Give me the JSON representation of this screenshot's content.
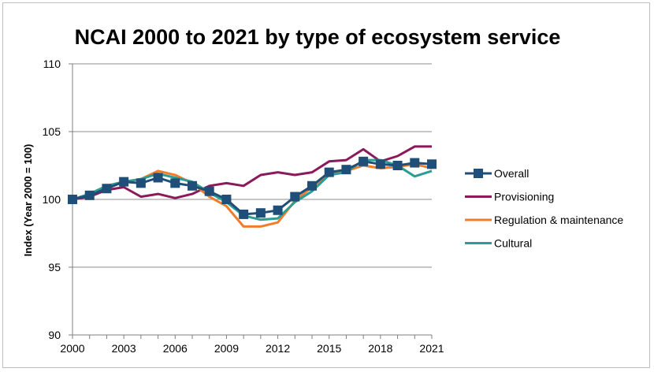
{
  "chart_data": {
    "type": "line",
    "title": "NCAI 2000 to 2021 by type of ecosystem service",
    "xlabel": "",
    "ylabel": "Index (Year 2000 = 100)",
    "ylim": [
      90,
      110
    ],
    "yticks": [
      90,
      95,
      100,
      105,
      110
    ],
    "xlim": [
      2000,
      2021
    ],
    "xticks": [
      2000,
      2003,
      2006,
      2009,
      2012,
      2015,
      2018,
      2021
    ],
    "grid": "horizontal",
    "legend_position": "right",
    "x": [
      2000,
      2001,
      2002,
      2003,
      2004,
      2005,
      2006,
      2007,
      2008,
      2009,
      2010,
      2011,
      2012,
      2013,
      2014,
      2015,
      2016,
      2017,
      2018,
      2019,
      2020,
      2021
    ],
    "series": [
      {
        "name": "Overall",
        "color": "#1F4E79",
        "marker": "square",
        "values": [
          100.0,
          100.3,
          100.8,
          101.3,
          101.2,
          101.6,
          101.2,
          101.0,
          100.6,
          100.0,
          98.9,
          99.0,
          99.2,
          100.2,
          101.0,
          102.0,
          102.2,
          102.8,
          102.6,
          102.5,
          102.7,
          102.6
        ]
      },
      {
        "name": "Provisioning",
        "color": "#8B1A5A",
        "marker": "none",
        "values": [
          100.0,
          100.2,
          100.7,
          100.9,
          100.2,
          100.4,
          100.1,
          100.4,
          101.0,
          101.2,
          101.0,
          101.8,
          102.0,
          101.8,
          102.0,
          102.8,
          102.9,
          103.7,
          102.8,
          103.2,
          103.9,
          103.9
        ]
      },
      {
        "name": "Regulation & maintenance",
        "color": "#F07D2B",
        "marker": "none",
        "values": [
          100.0,
          100.4,
          101.0,
          101.3,
          101.5,
          102.1,
          101.8,
          101.2,
          100.2,
          99.5,
          98.0,
          98.0,
          98.3,
          99.9,
          100.9,
          101.9,
          102.1,
          102.5,
          102.3,
          102.4,
          102.6,
          102.3
        ]
      },
      {
        "name": "Cultural",
        "color": "#2A9D94",
        "marker": "none",
        "values": [
          100.0,
          100.4,
          101.0,
          101.3,
          101.5,
          101.9,
          101.6,
          101.3,
          100.5,
          99.8,
          98.8,
          98.5,
          98.6,
          99.8,
          100.6,
          101.8,
          102.0,
          102.9,
          102.9,
          102.5,
          101.7,
          102.1
        ]
      }
    ]
  }
}
